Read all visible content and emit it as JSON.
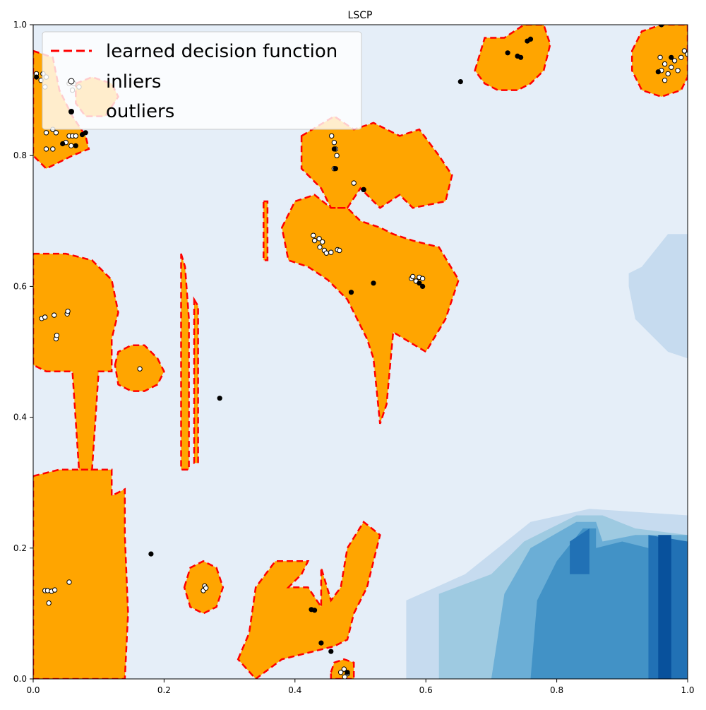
{
  "chart_data": {
    "type": "contour",
    "title": "LSCP",
    "xlabel": "",
    "ylabel": "",
    "xlim": [
      0.0,
      1.0
    ],
    "ylim": [
      0.0,
      1.0
    ],
    "xticks": [
      "0.0",
      "0.2",
      "0.4",
      "0.6",
      "0.8",
      "1.0"
    ],
    "yticks": [
      "0.0",
      "0.2",
      "0.4",
      "0.6",
      "0.8",
      "1.0"
    ],
    "xtick_values": [
      0.0,
      0.2,
      0.4,
      0.6,
      0.8,
      1.0
    ],
    "ytick_values": [
      0.0,
      0.2,
      0.4,
      0.6,
      0.8,
      1.0
    ],
    "grid": false,
    "legend_position": "top-left",
    "legend": [
      {
        "label": "learned decision function",
        "marker": "dashed-line",
        "color": "#ff0000"
      },
      {
        "label": "inliers",
        "marker": "circle",
        "color": "#ffffff"
      },
      {
        "label": "outliers",
        "marker": "circle",
        "color": "#000000"
      }
    ],
    "colors": {
      "background": "#e5eef8",
      "inlier_region": "#ffa500",
      "boundary": "#ff0000",
      "blues": [
        "#c6dbef",
        "#9ecae1",
        "#6baed6",
        "#4292c6",
        "#2171b5",
        "#08519c"
      ]
    },
    "inlier_regions": [
      {
        "polygon": [
          [
            0.0,
            0.96
          ],
          [
            0.03,
            0.95
          ],
          [
            0.04,
            0.9
          ],
          [
            0.06,
            0.86
          ],
          [
            0.08,
            0.83
          ],
          [
            0.085,
            0.81
          ],
          [
            0.06,
            0.8
          ],
          [
            0.02,
            0.78
          ],
          [
            0.0,
            0.8
          ]
        ]
      },
      {
        "polygon": [
          [
            0.065,
            0.91
          ],
          [
            0.09,
            0.92
          ],
          [
            0.12,
            0.91
          ],
          [
            0.13,
            0.89
          ],
          [
            0.11,
            0.86
          ],
          [
            0.08,
            0.86
          ],
          [
            0.065,
            0.88
          ]
        ]
      },
      {
        "polygon": [
          [
            0.0,
            0.65
          ],
          [
            0.05,
            0.65
          ],
          [
            0.09,
            0.64
          ],
          [
            0.12,
            0.61
          ],
          [
            0.13,
            0.56
          ],
          [
            0.12,
            0.52
          ],
          [
            0.12,
            0.47
          ],
          [
            0.1,
            0.47
          ],
          [
            0.09,
            0.32
          ],
          [
            0.07,
            0.32
          ],
          [
            0.06,
            0.47
          ],
          [
            0.02,
            0.47
          ],
          [
            0.0,
            0.48
          ]
        ]
      },
      {
        "polygon": [
          [
            0.0,
            0.31
          ],
          [
            0.04,
            0.32
          ],
          [
            0.12,
            0.32
          ],
          [
            0.12,
            0.28
          ],
          [
            0.14,
            0.29
          ],
          [
            0.14,
            0.22
          ],
          [
            0.145,
            0.1
          ],
          [
            0.14,
            0.0
          ],
          [
            0.0,
            0.0
          ]
        ]
      },
      {
        "polygon": [
          [
            0.125,
            0.48
          ],
          [
            0.13,
            0.5
          ],
          [
            0.15,
            0.51
          ],
          [
            0.17,
            0.51
          ],
          [
            0.19,
            0.49
          ],
          [
            0.2,
            0.47
          ],
          [
            0.19,
            0.45
          ],
          [
            0.17,
            0.44
          ],
          [
            0.15,
            0.44
          ],
          [
            0.13,
            0.45
          ]
        ]
      },
      {
        "polygon": [
          [
            0.226,
            0.65
          ],
          [
            0.232,
            0.63
          ],
          [
            0.238,
            0.55
          ],
          [
            0.238,
            0.32
          ],
          [
            0.226,
            0.32
          ]
        ]
      },
      {
        "polygon": [
          [
            0.246,
            0.58
          ],
          [
            0.252,
            0.57
          ],
          [
            0.252,
            0.33
          ],
          [
            0.246,
            0.33
          ]
        ]
      },
      {
        "polygon": [
          [
            0.231,
            0.14
          ],
          [
            0.24,
            0.17
          ],
          [
            0.26,
            0.18
          ],
          [
            0.28,
            0.17
          ],
          [
            0.29,
            0.14
          ],
          [
            0.28,
            0.11
          ],
          [
            0.26,
            0.1
          ],
          [
            0.24,
            0.11
          ]
        ]
      },
      {
        "polygon": [
          [
            0.352,
            0.73
          ],
          [
            0.358,
            0.73
          ],
          [
            0.358,
            0.64
          ],
          [
            0.352,
            0.64
          ]
        ]
      },
      {
        "polygon": [
          [
            0.41,
            0.83
          ],
          [
            0.46,
            0.86
          ],
          [
            0.49,
            0.84
          ],
          [
            0.52,
            0.85
          ],
          [
            0.56,
            0.83
          ],
          [
            0.59,
            0.84
          ],
          [
            0.62,
            0.8
          ],
          [
            0.64,
            0.77
          ],
          [
            0.63,
            0.73
          ],
          [
            0.58,
            0.72
          ],
          [
            0.56,
            0.74
          ],
          [
            0.53,
            0.72
          ],
          [
            0.5,
            0.75
          ],
          [
            0.48,
            0.72
          ],
          [
            0.455,
            0.72
          ],
          [
            0.44,
            0.75
          ],
          [
            0.41,
            0.78
          ]
        ]
      },
      {
        "polygon": [
          [
            0.38,
            0.69
          ],
          [
            0.4,
            0.73
          ],
          [
            0.43,
            0.74
          ],
          [
            0.455,
            0.72
          ],
          [
            0.48,
            0.72
          ],
          [
            0.5,
            0.7
          ],
          [
            0.53,
            0.69
          ],
          [
            0.55,
            0.68
          ],
          [
            0.58,
            0.67
          ],
          [
            0.62,
            0.66
          ],
          [
            0.65,
            0.61
          ],
          [
            0.63,
            0.55
          ],
          [
            0.6,
            0.5
          ],
          [
            0.55,
            0.53
          ],
          [
            0.54,
            0.42
          ],
          [
            0.53,
            0.39
          ],
          [
            0.52,
            0.49
          ],
          [
            0.51,
            0.52
          ],
          [
            0.48,
            0.58
          ],
          [
            0.45,
            0.61
          ],
          [
            0.42,
            0.63
          ],
          [
            0.39,
            0.64
          ]
        ]
      },
      {
        "polygon": [
          [
            0.313,
            0.03
          ],
          [
            0.33,
            0.07
          ],
          [
            0.34,
            0.14
          ],
          [
            0.37,
            0.18
          ],
          [
            0.42,
            0.18
          ],
          [
            0.41,
            0.16
          ],
          [
            0.39,
            0.14
          ],
          [
            0.42,
            0.14
          ],
          [
            0.44,
            0.11
          ],
          [
            0.44,
            0.17
          ],
          [
            0.455,
            0.12
          ],
          [
            0.47,
            0.14
          ],
          [
            0.48,
            0.2
          ],
          [
            0.505,
            0.24
          ],
          [
            0.53,
            0.22
          ],
          [
            0.51,
            0.14
          ],
          [
            0.49,
            0.1
          ],
          [
            0.48,
            0.06
          ],
          [
            0.46,
            0.05
          ],
          [
            0.42,
            0.04
          ],
          [
            0.38,
            0.03
          ],
          [
            0.34,
            0.0
          ]
        ]
      },
      {
        "polygon": [
          [
            0.455,
            0.01
          ],
          [
            0.46,
            0.025
          ],
          [
            0.475,
            0.03
          ],
          [
            0.49,
            0.025
          ],
          [
            0.49,
            0.0
          ],
          [
            0.455,
            0.0
          ]
        ]
      },
      {
        "polygon": [
          [
            0.675,
            0.93
          ],
          [
            0.69,
            0.98
          ],
          [
            0.72,
            0.98
          ],
          [
            0.735,
            0.99
          ],
          [
            0.75,
            1.0
          ],
          [
            0.78,
            1.0
          ],
          [
            0.79,
            0.97
          ],
          [
            0.78,
            0.93
          ],
          [
            0.76,
            0.91
          ],
          [
            0.74,
            0.9
          ],
          [
            0.71,
            0.9
          ],
          [
            0.69,
            0.91
          ]
        ]
      },
      {
        "polygon": [
          [
            0.915,
            0.96
          ],
          [
            0.93,
            0.99
          ],
          [
            0.96,
            1.0
          ],
          [
            1.0,
            1.0
          ],
          [
            1.0,
            0.92
          ],
          [
            0.99,
            0.9
          ],
          [
            0.96,
            0.89
          ],
          [
            0.93,
            0.9
          ],
          [
            0.915,
            0.93
          ]
        ]
      }
    ],
    "blue_regions": [
      {
        "level": 0,
        "polygon": [
          [
            0.57,
            0.0
          ],
          [
            0.57,
            0.12
          ],
          [
            0.66,
            0.16
          ],
          [
            0.76,
            0.24
          ],
          [
            0.85,
            0.26
          ],
          [
            1.0,
            0.25
          ],
          [
            1.0,
            0.0
          ]
        ]
      },
      {
        "level": 0,
        "polygon": [
          [
            0.91,
            0.62
          ],
          [
            0.93,
            0.63
          ],
          [
            0.97,
            0.68
          ],
          [
            1.0,
            0.68
          ],
          [
            1.0,
            0.49
          ],
          [
            0.97,
            0.5
          ],
          [
            0.92,
            0.55
          ],
          [
            0.91,
            0.6
          ]
        ]
      },
      {
        "level": 1,
        "polygon": [
          [
            0.62,
            0.0
          ],
          [
            0.62,
            0.13
          ],
          [
            0.7,
            0.16
          ],
          [
            0.75,
            0.21
          ],
          [
            0.83,
            0.25
          ],
          [
            0.87,
            0.25
          ],
          [
            0.92,
            0.23
          ],
          [
            1.0,
            0.22
          ],
          [
            1.0,
            0.0
          ]
        ]
      },
      {
        "level": 2,
        "polygon": [
          [
            0.7,
            0.0
          ],
          [
            0.72,
            0.13
          ],
          [
            0.76,
            0.2
          ],
          [
            0.83,
            0.24
          ],
          [
            0.86,
            0.24
          ],
          [
            0.87,
            0.21
          ],
          [
            0.92,
            0.22
          ],
          [
            1.0,
            0.22
          ],
          [
            1.0,
            0.0
          ]
        ]
      },
      {
        "level": 3,
        "polygon": [
          [
            0.76,
            0.0
          ],
          [
            0.77,
            0.12
          ],
          [
            0.8,
            0.18
          ],
          [
            0.84,
            0.23
          ],
          [
            0.86,
            0.23
          ],
          [
            0.86,
            0.2
          ],
          [
            0.9,
            0.21
          ],
          [
            0.94,
            0.2
          ],
          [
            0.94,
            0.0
          ]
        ]
      },
      {
        "level": 4,
        "polygon": [
          [
            0.82,
            0.21
          ],
          [
            0.85,
            0.23
          ],
          [
            0.85,
            0.16
          ],
          [
            0.82,
            0.16
          ]
        ]
      },
      {
        "level": 4,
        "polygon": [
          [
            0.94,
            0.0
          ],
          [
            0.94,
            0.22
          ],
          [
            1.0,
            0.21
          ],
          [
            1.0,
            0.0
          ]
        ]
      },
      {
        "level": 5,
        "polygon": [
          [
            0.955,
            0.0
          ],
          [
            0.955,
            0.22
          ],
          [
            0.975,
            0.22
          ],
          [
            0.975,
            0.0
          ]
        ]
      }
    ],
    "inliers": [
      [
        0.005,
        0.925
      ],
      [
        0.012,
        0.915
      ],
      [
        0.015,
        0.925
      ],
      [
        0.02,
        0.92
      ],
      [
        0.018,
        0.905
      ],
      [
        0.07,
        0.905
      ],
      [
        0.062,
        0.91
      ],
      [
        0.03,
        0.84
      ],
      [
        0.035,
        0.835
      ],
      [
        0.02,
        0.835
      ],
      [
        0.055,
        0.83
      ],
      [
        0.06,
        0.83
      ],
      [
        0.065,
        0.83
      ],
      [
        0.05,
        0.82
      ],
      [
        0.058,
        0.815
      ],
      [
        0.03,
        0.81
      ],
      [
        0.02,
        0.81
      ],
      [
        0.055,
        0.91
      ],
      [
        0.06,
        0.9
      ],
      [
        0.013,
        0.551
      ],
      [
        0.018,
        0.553
      ],
      [
        0.032,
        0.556
      ],
      [
        0.052,
        0.558
      ],
      [
        0.053,
        0.562
      ],
      [
        0.035,
        0.52
      ],
      [
        0.036,
        0.525
      ],
      [
        0.163,
        0.474
      ],
      [
        0.018,
        0.135
      ],
      [
        0.022,
        0.135
      ],
      [
        0.028,
        0.134
      ],
      [
        0.033,
        0.136
      ],
      [
        0.024,
        0.116
      ],
      [
        0.055,
        0.148
      ],
      [
        0.26,
        0.135
      ],
      [
        0.262,
        0.142
      ],
      [
        0.264,
        0.139
      ],
      [
        0.456,
        0.83
      ],
      [
        0.46,
        0.82
      ],
      [
        0.462,
        0.81
      ],
      [
        0.464,
        0.8
      ],
      [
        0.46,
        0.78
      ],
      [
        0.49,
        0.758
      ],
      [
        0.505,
        0.748
      ],
      [
        0.428,
        0.678
      ],
      [
        0.43,
        0.67
      ],
      [
        0.437,
        0.673
      ],
      [
        0.442,
        0.668
      ],
      [
        0.438,
        0.66
      ],
      [
        0.445,
        0.655
      ],
      [
        0.448,
        0.651
      ],
      [
        0.455,
        0.652
      ],
      [
        0.465,
        0.656
      ],
      [
        0.468,
        0.655
      ],
      [
        0.578,
        0.612
      ],
      [
        0.585,
        0.608
      ],
      [
        0.59,
        0.614
      ],
      [
        0.595,
        0.612
      ],
      [
        0.58,
        0.615
      ],
      [
        0.47,
        0.01
      ],
      [
        0.475,
        0.015
      ],
      [
        0.48,
        0.008
      ],
      [
        0.476,
        0.003
      ],
      [
        0.958,
        0.95
      ],
      [
        0.96,
        0.93
      ],
      [
        0.965,
        0.94
      ],
      [
        0.97,
        0.925
      ],
      [
        0.975,
        0.935
      ],
      [
        0.98,
        0.945
      ],
      [
        0.985,
        0.93
      ],
      [
        0.99,
        0.95
      ],
      [
        0.995,
        0.96
      ],
      [
        1.0,
        0.955
      ],
      [
        0.965,
        0.915
      ]
    ],
    "outliers": [
      [
        0.058,
        0.866
      ],
      [
        0.08,
        0.835
      ],
      [
        0.075,
        0.832
      ],
      [
        0.045,
        0.818
      ],
      [
        0.065,
        0.815
      ],
      [
        0.005,
        0.92
      ],
      [
        0.18,
        0.191
      ],
      [
        0.285,
        0.429
      ],
      [
        0.653,
        0.913
      ],
      [
        0.486,
        0.591
      ],
      [
        0.52,
        0.605
      ],
      [
        0.595,
        0.6
      ],
      [
        0.59,
        0.605
      ],
      [
        0.425,
        0.106
      ],
      [
        0.43,
        0.105
      ],
      [
        0.44,
        0.055
      ],
      [
        0.455,
        0.042
      ],
      [
        0.48,
        0.01
      ],
      [
        0.462,
        0.78
      ],
      [
        0.46,
        0.81
      ],
      [
        0.505,
        0.748
      ],
      [
        0.725,
        0.957
      ],
      [
        0.74,
        0.952
      ],
      [
        0.745,
        0.95
      ],
      [
        0.755,
        0.975
      ],
      [
        0.76,
        0.978
      ],
      [
        0.955,
        0.928
      ],
      [
        0.96,
        1.0
      ],
      [
        0.975,
        0.95
      ]
    ]
  }
}
